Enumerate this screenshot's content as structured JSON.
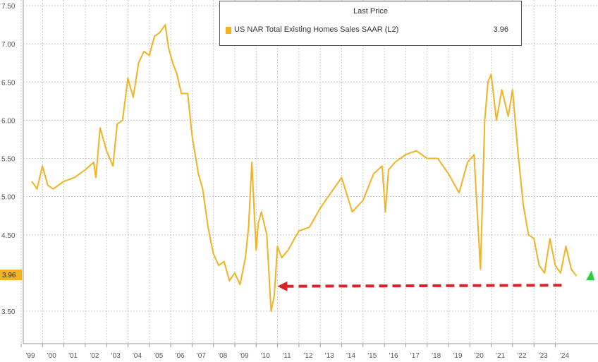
{
  "chart_data": {
    "type": "line",
    "legend": {
      "title": "Last Price",
      "series_label": "US NAR Total Existing Homes Sales SAAR  (L2)",
      "last_value": "3.96"
    },
    "last_value_tag": "3.96",
    "x_tick_labels": [
      "'99",
      "'00",
      "'01",
      "'02",
      "'03",
      "'04",
      "'05",
      "'06",
      "'07",
      "'08",
      "'09",
      "'10",
      "'11",
      "'12",
      "'13",
      "'14",
      "'15",
      "'16",
      "'17",
      "'18",
      "'19",
      "'20",
      "'21",
      "'22",
      "'23",
      "'24"
    ],
    "y_tick_labels": [
      "7.50",
      "7.00",
      "6.50",
      "6.00",
      "5.50",
      "5.00",
      "4.50",
      "3.50"
    ],
    "ylim": [
      3.5,
      7.5
    ],
    "grid": true,
    "legend_position": "top-center",
    "series": [
      {
        "name": "US NAR Total Existing Homes Sales SAAR  (L2)",
        "color": "#f0b323",
        "x": [
          1999.0,
          1999.25,
          1999.5,
          1999.75,
          2000.0,
          2000.5,
          2001.0,
          2001.5,
          2001.9,
          2002.0,
          2002.2,
          2002.5,
          2002.8,
          2003.0,
          2003.25,
          2003.5,
          2003.75,
          2004.0,
          2004.25,
          2004.5,
          2004.75,
          2005.0,
          2005.25,
          2005.4,
          2005.6,
          2005.8,
          2006.0,
          2006.3,
          2006.5,
          2006.8,
          2007.0,
          2007.25,
          2007.5,
          2007.75,
          2008.0,
          2008.25,
          2008.5,
          2008.75,
          2009.0,
          2009.15,
          2009.3,
          2009.5,
          2009.6,
          2009.75,
          2010.0,
          2010.2,
          2010.35,
          2010.5,
          2010.7,
          2011.0,
          2011.5,
          2012.0,
          2012.5,
          2013.0,
          2013.5,
          2014.0,
          2014.5,
          2015.0,
          2015.4,
          2015.55,
          2015.7,
          2016.0,
          2016.5,
          2017.0,
          2017.5,
          2018.0,
          2018.5,
          2019.0,
          2019.4,
          2019.7,
          2020.0,
          2020.2,
          2020.35,
          2020.5,
          2020.75,
          2021.0,
          2021.3,
          2021.5,
          2021.75,
          2022.0,
          2022.25,
          2022.5,
          2022.75,
          2023.0,
          2023.25,
          2023.5,
          2023.75,
          2024.0,
          2024.25,
          2024.5
        ],
        "values": [
          5.2,
          5.1,
          5.4,
          5.15,
          5.1,
          5.2,
          5.25,
          5.35,
          5.45,
          5.25,
          5.9,
          5.6,
          5.4,
          5.95,
          6.0,
          6.55,
          6.3,
          6.75,
          6.9,
          6.85,
          7.1,
          7.15,
          7.25,
          6.95,
          6.75,
          6.6,
          6.35,
          6.35,
          5.8,
          5.3,
          5.1,
          4.6,
          4.25,
          4.1,
          4.15,
          3.9,
          4.0,
          3.85,
          4.2,
          4.6,
          5.45,
          4.3,
          4.65,
          4.8,
          4.5,
          3.5,
          3.7,
          4.35,
          4.2,
          4.3,
          4.55,
          4.6,
          4.85,
          5.05,
          5.25,
          4.8,
          4.95,
          5.3,
          5.4,
          4.8,
          5.35,
          5.45,
          5.55,
          5.6,
          5.5,
          5.5,
          5.3,
          5.05,
          5.45,
          5.55,
          4.05,
          6.0,
          6.5,
          6.6,
          6.0,
          6.4,
          6.05,
          6.4,
          5.6,
          4.9,
          4.5,
          4.45,
          4.1,
          4.0,
          4.45,
          4.1,
          4.0,
          4.35,
          4.05,
          3.96
        ]
      }
    ],
    "annotation": {
      "arrow_from_year": 2023.8,
      "arrow_to_year": 2010.5,
      "arrow_value": 3.84,
      "arrow_color": "#d8232a",
      "marker_color": "#2ecc40"
    }
  }
}
